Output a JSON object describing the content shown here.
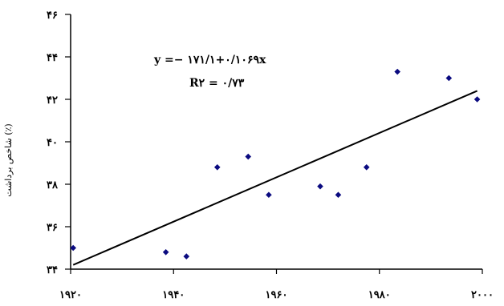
{
  "chart_data": {
    "type": "scatter",
    "title": "",
    "xlabel": "",
    "ylabel": "شاخص برداشت (٪)",
    "xlim": [
      1920,
      2000
    ],
    "ylim": [
      34,
      46
    ],
    "x_ticks": [
      1920,
      1940,
      1960,
      1980,
      2000
    ],
    "x_tick_labels": [
      "۱۹۲۰",
      "۱۹۴۰",
      "۱۹۶۰",
      "۱۹۸۰",
      "۲۰۰۰"
    ],
    "y_ticks": [
      34,
      36,
      38,
      40,
      42,
      44,
      46
    ],
    "y_tick_labels": [
      "۳۴",
      "۳۶",
      "۳۸",
      "۴۰",
      "۴۲",
      "۴۴",
      "۴۶"
    ],
    "grid": false,
    "legend": "none",
    "series": [
      {
        "points": [
          {
            "x": 1920.5,
            "y": 35.0
          },
          {
            "x": 1938.5,
            "y": 34.8
          },
          {
            "x": 1942.5,
            "y": 34.6
          },
          {
            "x": 1948.5,
            "y": 38.8
          },
          {
            "x": 1954.5,
            "y": 39.3
          },
          {
            "x": 1958.5,
            "y": 37.5
          },
          {
            "x": 1968.5,
            "y": 37.9
          },
          {
            "x": 1972.0,
            "y": 37.5
          },
          {
            "x": 1977.5,
            "y": 38.8
          },
          {
            "x": 1983.5,
            "y": 43.3
          },
          {
            "x": 1993.5,
            "y": 43.0
          },
          {
            "x": 1999.0,
            "y": 42.0
          }
        ]
      }
    ],
    "trendline": {
      "x": [
        1920.5,
        1999.0
      ],
      "y": [
        34.2,
        42.4
      ]
    },
    "equation": "y =− ۱۷۱/۱+۰/۱۰۶۹x",
    "r_squared": "R۲ = ۰/۷۳",
    "marker_color": "#0b0b80",
    "line_color": "#000000"
  }
}
